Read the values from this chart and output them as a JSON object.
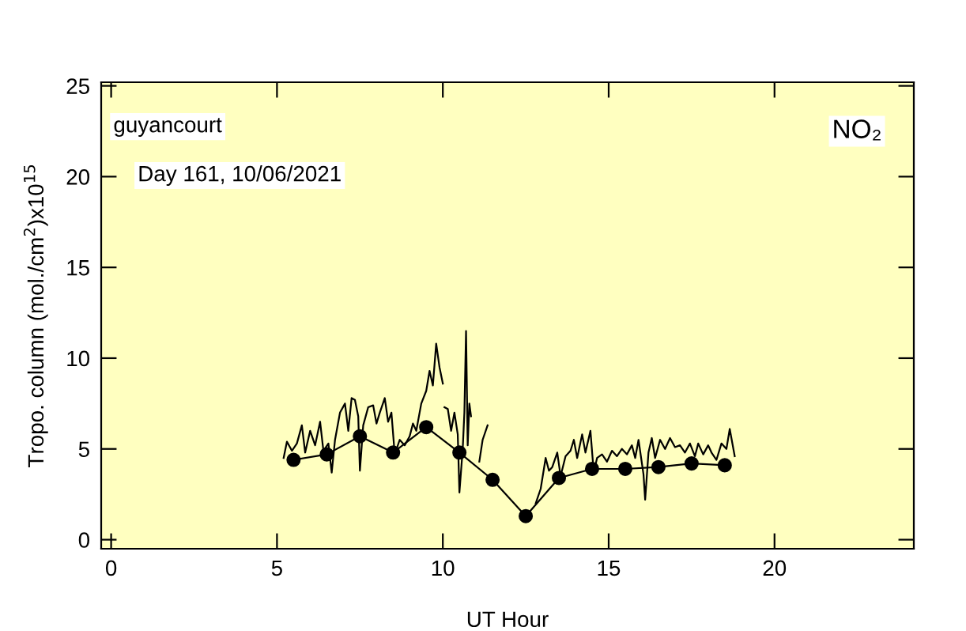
{
  "chart_data": {
    "type": "line",
    "xlabel": "UT Hour",
    "ylabel": "Tropo. column (mol./cm$^{2}$)x10$^{15}$",
    "annotations": [
      "guyancourt",
      "Day 161, 10/06/2021",
      "NO₂"
    ],
    "xlim": [
      -0.3,
      24.2
    ],
    "ylim": [
      -0.5,
      25.2
    ],
    "xticks": [
      0,
      5,
      10,
      15,
      20
    ],
    "yticks": [
      0,
      5,
      10,
      15,
      20,
      25
    ],
    "grid": false,
    "legend": false,
    "series": [
      {
        "color": "#000000",
        "marker": "none",
        "x": [
          5.2,
          5.3,
          5.45,
          5.6,
          5.75,
          5.85,
          6.0,
          6.15,
          6.3,
          6.4,
          6.55,
          6.65,
          6.75,
          6.9,
          7.05,
          7.15,
          7.25,
          7.35,
          7.45,
          7.5,
          7.6,
          7.75,
          7.9,
          8.0,
          8.1,
          8.25,
          8.35,
          8.45,
          8.55,
          8.7,
          8.85,
          9.0,
          9.1,
          9.2,
          9.35,
          9.5,
          9.6,
          9.7,
          9.8,
          9.9,
          10.0,
          10.02,
          10.05,
          10.15,
          10.25,
          10.35,
          10.45,
          10.5,
          10.6,
          10.65,
          10.7,
          10.75,
          10.8,
          10.85,
          11.0,
          11.1,
          11.2,
          11.35,
          12.0,
          12.8,
          12.95,
          13.1,
          13.2,
          13.3,
          13.45,
          13.55,
          13.7,
          13.85,
          13.95,
          14.05,
          14.2,
          14.3,
          14.45,
          14.55,
          14.65,
          14.8,
          14.95,
          15.1,
          15.25,
          15.4,
          15.55,
          15.7,
          15.8,
          15.9,
          16.05,
          16.1,
          16.2,
          16.3,
          16.4,
          16.55,
          16.7,
          16.85,
          17.0,
          17.15,
          17.3,
          17.45,
          17.6,
          17.7,
          17.85,
          18.0,
          18.1,
          18.25,
          18.4,
          18.55,
          18.65,
          18.8
        ],
        "values": [
          4.5,
          5.4,
          4.9,
          5.3,
          6.3,
          4.8,
          6.0,
          5.2,
          6.5,
          4.9,
          5.3,
          3.7,
          5.5,
          7.0,
          7.5,
          6.0,
          7.8,
          7.7,
          6.8,
          3.8,
          6.3,
          7.3,
          7.4,
          6.4,
          7.0,
          7.8,
          6.5,
          7.0,
          4.7,
          5.5,
          5.2,
          5.7,
          6.4,
          6.0,
          7.5,
          8.2,
          9.3,
          8.5,
          10.8,
          9.5,
          8.6,
          null,
          7.3,
          7.2,
          6.0,
          7.0,
          5.8,
          2.6,
          5.0,
          7.0,
          11.5,
          5.2,
          7.5,
          6.8,
          null,
          4.3,
          5.5,
          6.3,
          null,
          2.0,
          2.8,
          4.5,
          3.8,
          4.0,
          4.8,
          3.5,
          4.6,
          4.9,
          5.5,
          4.5,
          5.8,
          4.8,
          6.0,
          3.7,
          4.5,
          4.7,
          4.3,
          4.9,
          4.6,
          5.0,
          4.7,
          5.2,
          4.5,
          5.5,
          3.6,
          2.2,
          4.8,
          5.6,
          4.5,
          5.5,
          5.0,
          5.6,
          5.1,
          5.2,
          4.8,
          5.3,
          4.6,
          5.3,
          4.7,
          5.2,
          4.8,
          4.4,
          5.3,
          5.0,
          6.1,
          4.6
        ]
      },
      {
        "color": "#000000",
        "marker": "circle",
        "x": [
          5.5,
          6.5,
          7.5,
          8.5,
          9.5,
          10.5,
          11.5,
          12.5,
          13.5,
          14.5,
          15.5,
          16.5,
          17.5,
          18.5
        ],
        "values": [
          4.4,
          4.7,
          5.7,
          4.8,
          6.2,
          4.8,
          3.3,
          1.3,
          3.4,
          3.9,
          3.9,
          4.0,
          4.2,
          4.1
        ]
      }
    ]
  }
}
